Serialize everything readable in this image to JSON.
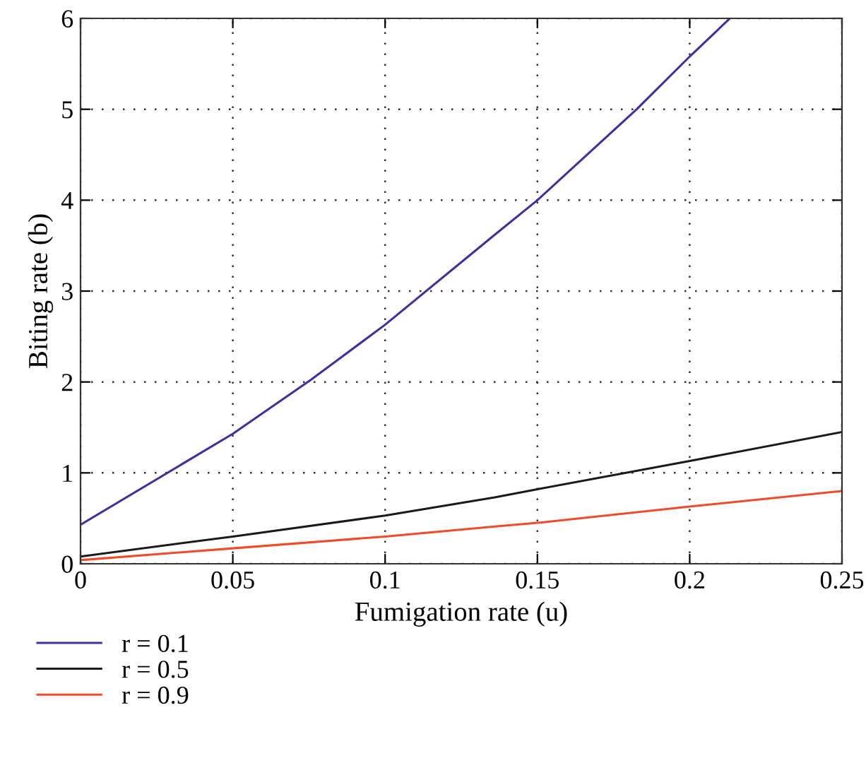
{
  "chart_data": {
    "type": "line",
    "xlabel": "Fumigation rate (u)",
    "ylabel": "Biting rate (b)",
    "xlim": [
      0,
      0.25
    ],
    "ylim": [
      0,
      6
    ],
    "xticks": [
      0,
      0.05,
      0.1,
      0.15,
      0.2,
      0.25
    ],
    "yticks": [
      0,
      1,
      2,
      3,
      4,
      5,
      6
    ],
    "grid": true,
    "legend": "bottom left",
    "line_style": "solid",
    "marker": "none",
    "series": [
      {
        "name": "r = 0.1",
        "color": "#3b32a0",
        "x": [
          0,
          0.05,
          0.0755,
          0.1,
          0.136,
          0.15,
          0.1826,
          0.2,
          0.2132
        ],
        "values": [
          0.43,
          1.43,
          2.02,
          2.63,
          3.62,
          4.0,
          5.0,
          5.58,
          6.0
        ]
      },
      {
        "name": "r = 0.5",
        "color": "#1a1a1a",
        "x": [
          0,
          0.05,
          0.1,
          0.136,
          0.15,
          0.2,
          0.25
        ],
        "values": [
          0.08,
          0.3,
          0.53,
          0.73,
          0.82,
          1.13,
          1.45
        ]
      },
      {
        "name": "r = 0.9",
        "color": "#f04a2a",
        "x": [
          0,
          0.05,
          0.1,
          0.136,
          0.15,
          0.2,
          0.25
        ],
        "values": [
          0.04,
          0.17,
          0.3,
          0.41,
          0.45,
          0.63,
          0.8
        ]
      }
    ]
  }
}
